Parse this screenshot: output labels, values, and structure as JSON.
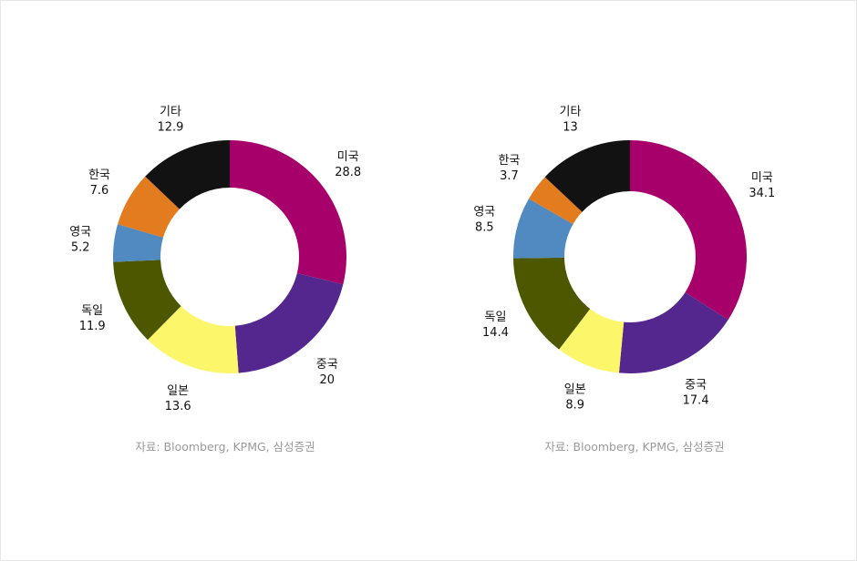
{
  "chart_data": [
    {
      "type": "pie",
      "variant": "donut",
      "categories": [
        "미국",
        "중국",
        "일본",
        "독일",
        "영국",
        "한국",
        "기타"
      ],
      "values": [
        28.8,
        20,
        13.6,
        11.9,
        5.2,
        7.6,
        12.9
      ],
      "value_labels": [
        "28.8",
        "20",
        "13.6",
        "11.9",
        "5.2",
        "7.6",
        "12.9"
      ],
      "colors": [
        "#A8006A",
        "#54278F",
        "#FCF66A",
        "#4D5700",
        "#508AC0",
        "#E37B1F",
        "#121212"
      ],
      "source": "자료: Bloomberg, KPMG, 삼성증권"
    },
    {
      "type": "pie",
      "variant": "donut",
      "categories": [
        "미국",
        "중국",
        "일본",
        "독일",
        "영국",
        "한국",
        "기타"
      ],
      "values": [
        34.1,
        17.4,
        8.9,
        14.4,
        8.5,
        3.7,
        13
      ],
      "value_labels": [
        "34.1",
        "17.4",
        "8.9",
        "14.4",
        "8.5",
        "3.7",
        "13"
      ],
      "colors": [
        "#A8006A",
        "#54278F",
        "#FCF66A",
        "#4D5700",
        "#508AC0",
        "#E37B1F",
        "#121212"
      ],
      "source": "자료: Bloomberg, KPMG, 삼성증권"
    }
  ]
}
